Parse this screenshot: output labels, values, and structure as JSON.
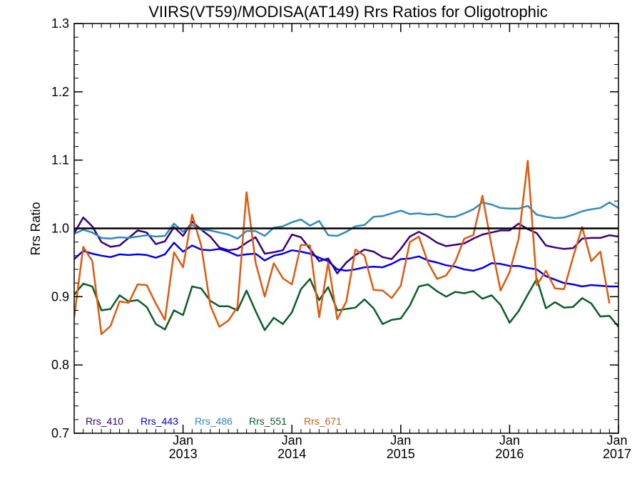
{
  "chart_data": {
    "type": "line",
    "title": "VIIRS(VT59)/MODISA(AT149)  Rrs Ratios for Oligotrophic",
    "xlabel": "",
    "ylabel": "Rrs Ratio",
    "ylim": [
      0.7,
      1.3
    ],
    "xlim": [
      "2012-01",
      "2017-01"
    ],
    "yticks": [
      "0.7",
      "0.8",
      "0.9",
      "1.0",
      "1.1",
      "1.2",
      "1.3"
    ],
    "xticks": [
      {
        "month": "Jan",
        "year": "2013",
        "date": "2013-01"
      },
      {
        "month": "Jan",
        "year": "2014",
        "date": "2014-01"
      },
      {
        "month": "Jan",
        "year": "2015",
        "date": "2015-01"
      },
      {
        "month": "Jan",
        "year": "2016",
        "date": "2016-01"
      },
      {
        "month": "Jan",
        "year": "2017",
        "date": "2017-01"
      }
    ],
    "reference_line": 1.0,
    "grid": false,
    "legend_position": "bottom-left",
    "start_date": "2012-01",
    "step_months": 1,
    "series": [
      {
        "name": "Rrs_410",
        "color": "#3b0080",
        "values": [
          0.993,
          1.016,
          1.003,
          0.98,
          0.973,
          0.975,
          0.986,
          0.997,
          0.994,
          0.977,
          0.981,
          1.002,
          0.989,
          1.01,
          0.998,
          0.988,
          0.972,
          0.968,
          0.97,
          0.979,
          0.987,
          0.963,
          0.965,
          0.968,
          0.991,
          0.987,
          0.97,
          0.952,
          0.956,
          0.934,
          0.95,
          0.961,
          0.969,
          0.966,
          0.958,
          0.955,
          0.97,
          0.988,
          0.995,
          0.988,
          0.979,
          0.974,
          0.976,
          0.978,
          0.985,
          0.991,
          0.994,
          0.997,
          0.997,
          1.007,
          0.999,
          0.993,
          0.975,
          0.972,
          0.97,
          0.971,
          0.985,
          0.986,
          0.986,
          0.99,
          0.988
        ]
      },
      {
        "name": "Rrs_443",
        "color": "#0000ee",
        "values": [
          0.955,
          0.967,
          0.963,
          0.96,
          0.958,
          0.962,
          0.961,
          0.962,
          0.961,
          0.957,
          0.962,
          0.979,
          0.966,
          0.975,
          0.969,
          0.968,
          0.97,
          0.966,
          0.96,
          0.962,
          0.963,
          0.953,
          0.96,
          0.963,
          0.968,
          0.966,
          0.963,
          0.957,
          0.952,
          0.94,
          0.938,
          0.94,
          0.943,
          0.944,
          0.943,
          0.948,
          0.955,
          0.956,
          0.959,
          0.953,
          0.95,
          0.946,
          0.944,
          0.94,
          0.938,
          0.942,
          0.949,
          0.948,
          0.945,
          0.945,
          0.942,
          0.94,
          0.93,
          0.925,
          0.92,
          0.918,
          0.915,
          0.917,
          0.916,
          0.915,
          0.915
        ]
      },
      {
        "name": "Rrs_486",
        "color": "#2e8bc0",
        "values": [
          0.992,
          0.998,
          0.994,
          0.986,
          0.985,
          0.987,
          0.986,
          0.988,
          0.99,
          0.988,
          0.989,
          1.007,
          0.995,
          1.005,
          0.998,
          0.997,
          0.994,
          0.991,
          0.985,
          0.996,
          0.996,
          0.989,
          1.001,
          1.003,
          1.009,
          1.013,
          1.004,
          1.011,
          0.99,
          0.989,
          0.995,
          1.003,
          1.005,
          1.017,
          1.018,
          1.022,
          1.026,
          1.021,
          1.022,
          1.02,
          1.021,
          1.017,
          1.017,
          1.022,
          1.028,
          1.038,
          1.035,
          1.03,
          1.029,
          1.029,
          1.033,
          1.02,
          1.017,
          1.015,
          1.016,
          1.02,
          1.025,
          1.028,
          1.03,
          1.038,
          1.03
        ]
      },
      {
        "name": "Rrs_551",
        "color": "#0b5e2a",
        "values": [
          0.903,
          0.919,
          0.915,
          0.88,
          0.882,
          0.902,
          0.893,
          0.895,
          0.885,
          0.86,
          0.852,
          0.88,
          0.873,
          0.915,
          0.912,
          0.894,
          0.886,
          0.886,
          0.88,
          0.909,
          0.879,
          0.851,
          0.869,
          0.86,
          0.877,
          0.911,
          0.926,
          0.895,
          0.914,
          0.88,
          0.882,
          0.884,
          0.896,
          0.883,
          0.86,
          0.866,
          0.868,
          0.887,
          0.915,
          0.918,
          0.908,
          0.9,
          0.907,
          0.905,
          0.908,
          0.897,
          0.902,
          0.888,
          0.862,
          0.879,
          0.903,
          0.926,
          0.883,
          0.892,
          0.884,
          0.885,
          0.898,
          0.89,
          0.871,
          0.872,
          0.856
        ]
      },
      {
        "name": "Rrs_671",
        "color": "#e05a10",
        "values": [
          0.87,
          0.973,
          0.952,
          0.845,
          0.857,
          0.893,
          0.891,
          0.918,
          0.917,
          0.89,
          0.866,
          0.965,
          0.943,
          1.02,
          0.975,
          0.887,
          0.856,
          0.865,
          0.885,
          1.053,
          0.95,
          0.9,
          0.949,
          0.927,
          0.918,
          0.976,
          0.975,
          0.87,
          0.95,
          0.867,
          0.893,
          0.969,
          0.96,
          0.91,
          0.909,
          0.898,
          0.916,
          0.98,
          0.988,
          0.95,
          0.926,
          0.931,
          0.951,
          0.985,
          0.99,
          1.048,
          0.975,
          0.909,
          0.936,
          0.985,
          1.099,
          0.917,
          0.938,
          0.912,
          0.911,
          0.958,
          1.002,
          0.952,
          0.966,
          0.89
        ]
      }
    ]
  }
}
